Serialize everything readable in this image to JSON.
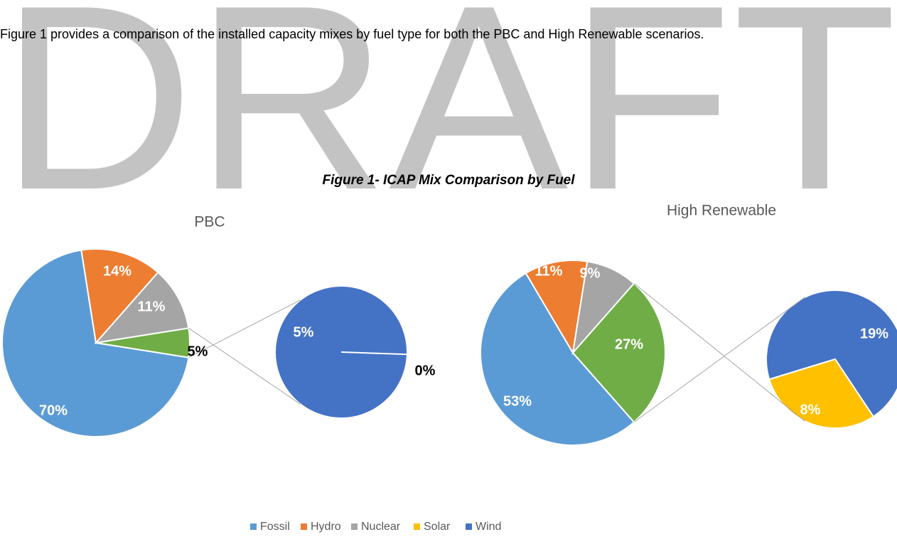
{
  "watermark": "DRAFT",
  "paragraph": "Figure 1 provides a comparison of the installed capacity mixes by fuel type for both the PBC and High Renewable scenarios.",
  "caption": "Figure 1- ICAP Mix Comparison by Fuel",
  "chart_data": [
    {
      "type": "pie-of-pie",
      "title": "PBC",
      "values": [
        70,
        14,
        11,
        5
      ],
      "value_labels": [
        "70%",
        "14%",
        "11%",
        "5%"
      ],
      "colors": [
        "#5b9bd5",
        "#ed7d31",
        "#a5a5a5",
        "#70ad47"
      ],
      "secondary": {
        "values": [
          5,
          0
        ],
        "value_labels": [
          "5%",
          "0%"
        ],
        "colors": [
          "#4472c4",
          "#ffc000"
        ]
      }
    },
    {
      "type": "pie-of-pie",
      "title": "High Renewable",
      "values": [
        53,
        11,
        9,
        27
      ],
      "value_labels": [
        "53%",
        "11%",
        "9%",
        "27%"
      ],
      "colors": [
        "#5b9bd5",
        "#ed7d31",
        "#a5a5a5",
        "#70ad47"
      ],
      "secondary": {
        "values": [
          19,
          8
        ],
        "value_labels": [
          "19%",
          "8%"
        ],
        "colors": [
          "#4472c4",
          "#ffc000"
        ]
      }
    }
  ],
  "legend": {
    "names": [
      "Fossil",
      "Hydro",
      "Nuclear",
      "Solar",
      "Wind"
    ],
    "colors": [
      "#5b9bd5",
      "#ed7d31",
      "#a5a5a5",
      "#ffc000",
      "#4472c4"
    ]
  }
}
